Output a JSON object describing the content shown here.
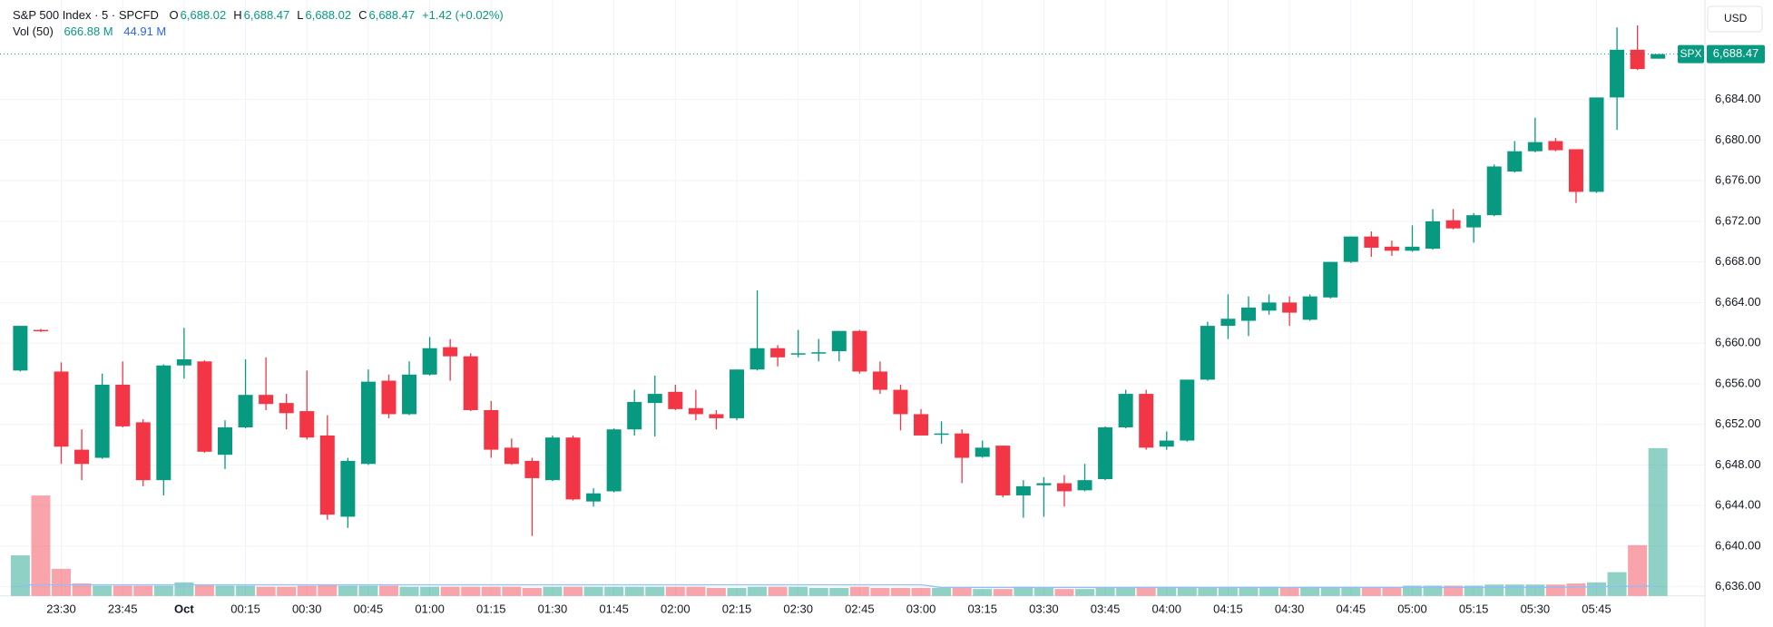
{
  "chart_data": {
    "type": "candlestick",
    "title": "S&P 500 Index · 5 · SPCFD",
    "ohlc_legend": [
      {
        "key": "O",
        "text": "6,688.02"
      },
      {
        "key": "H",
        "text": "6,688.47"
      },
      {
        "key": "L",
        "text": "6,688.02"
      },
      {
        "key": "C",
        "text": "6,688.47"
      }
    ],
    "change": "+1.42 (+0.02%)",
    "volume_legend": {
      "name": "Vol (50)",
      "values": [
        "666.88 M",
        "44.91 M"
      ]
    },
    "currency": "USD",
    "symbol": "SPX",
    "last_price": {
      "value": 6688.47,
      "label": "6,688.47"
    },
    "up_color": "#089981",
    "down_color": "#f23645",
    "volume_ma_color": "#90bff9",
    "grid": true,
    "categories": [
      null,
      null,
      "23:30",
      null,
      null,
      "23:45",
      null,
      null,
      "Oct",
      null,
      null,
      "00:15",
      null,
      null,
      "00:30",
      null,
      null,
      "00:45",
      null,
      null,
      "01:00",
      null,
      null,
      "01:15",
      null,
      null,
      "01:30",
      null,
      null,
      "01:45",
      null,
      null,
      "02:00",
      null,
      null,
      "02:15",
      null,
      null,
      "02:30",
      null,
      null,
      "02:45",
      null,
      null,
      "03:00",
      null,
      null,
      "03:15",
      null,
      null,
      "03:30",
      null,
      null,
      "03:45",
      null,
      null,
      "04:00",
      null,
      null,
      "04:15",
      null,
      null,
      "04:30",
      null,
      null,
      "04:45",
      null,
      null,
      "05:00",
      null,
      null,
      "05:15",
      null,
      null,
      "05:30",
      null,
      null,
      "05:45",
      null,
      null,
      null
    ],
    "open": [
      6657.3,
      6661.3,
      6657.2,
      6649.5,
      6648.7,
      6655.9,
      6652.2,
      6646.5,
      6657.8,
      6658.2,
      6649,
      6651.7,
      6654.9,
      6654.1,
      6653.3,
      6650.9,
      6642.9,
      6648.1,
      6656.3,
      6653,
      6656.9,
      6659.6,
      6658.7,
      6653.4,
      6649.7,
      6648.4,
      6646.5,
      6650.7,
      6644.4,
      6645.4,
      6651.5,
      6654.1,
      6655.2,
      6653.6,
      6653,
      6652.6,
      6657.4,
      6659.5,
      6658.9,
      6659,
      6659.2,
      6661.2,
      6657.2,
      6655.4,
      6653,
      6651,
      6651.1,
      6648.8,
      6649.9,
      6645,
      6646,
      6646.2,
      6645.5,
      6646.6,
      6651.7,
      6655,
      6649.8,
      6650.4,
      6656.4,
      6661.7,
      6662.2,
      6663.2,
      6664,
      6662.3,
      6664.5,
      6668,
      6670.5,
      6669.5,
      6669.1,
      6669.3,
      6672.1,
      6671.4,
      6672.6,
      6676.9,
      6678.9,
      6679.9,
      6679.1,
      6674.9,
      6684.2,
      6688.9,
      6688.02
    ],
    "high": [
      6661.7,
      6661.4,
      6658.1,
      6651.5,
      6657,
      6658.2,
      6652.5,
      6657.9,
      6661.5,
      6658.3,
      6652.4,
      6658.4,
      6658.6,
      6655,
      6657.3,
      6652.9,
      6648.7,
      6657.4,
      6656.9,
      6658.2,
      6660.6,
      6660.4,
      6659,
      6654.3,
      6650.6,
      6648.7,
      6650.9,
      6650.9,
      6645.7,
      6651.6,
      6655.4,
      6656.8,
      6655.9,
      6655.4,
      6653.4,
      6657.4,
      6665.2,
      6659.8,
      6661.3,
      6660.4,
      6661.2,
      6661.3,
      6658.2,
      6655.9,
      6653.5,
      6652.3,
      6651.5,
      6650.4,
      6649.9,
      6646.5,
      6646.8,
      6647,
      6648.1,
      6651.8,
      6655.4,
      6655.4,
      6651.3,
      6656.4,
      6662.1,
      6664.8,
      6664.6,
      6664.8,
      6664.6,
      6664.8,
      6668,
      6670.5,
      6671,
      6670.1,
      6671.6,
      6673.2,
      6673.2,
      6672.8,
      6677.6,
      6679.9,
      6682.2,
      6680.2,
      6679.1,
      6684.2,
      6691.1,
      6691.3,
      6688.47
    ],
    "low": [
      6657.2,
      6661.1,
      6648.1,
      6646.5,
      6648.6,
      6651.7,
      6645.9,
      6645,
      6656.5,
      6649.2,
      6647.6,
      6651.6,
      6653.4,
      6651.5,
      6650.5,
      6642.6,
      6641.8,
      6648,
      6652.6,
      6652.9,
      6656.8,
      6656.3,
      6653.3,
      6648.7,
      6648,
      6641,
      6646.4,
      6644.5,
      6643.9,
      6645.3,
      6650.9,
      6650.8,
      6653.4,
      6652.4,
      6651.5,
      6652.4,
      6657.3,
      6657.7,
      6658.6,
      6658.2,
      6658.2,
      6657,
      6655,
      6651.4,
      6650.9,
      6650.1,
      6646.2,
      6648.7,
      6644.8,
      6642.8,
      6642.9,
      6643.9,
      6645.4,
      6646.5,
      6651.6,
      6649.5,
      6649.5,
      6650.3,
      6656.3,
      6660.4,
      6660.7,
      6662.8,
      6661.7,
      6662.2,
      6664.4,
      6667.9,
      6668.5,
      6668.6,
      6669,
      6669.2,
      6671.2,
      6669.9,
      6672.5,
      6676.8,
      6678.8,
      6678.9,
      6673.8,
      6674.8,
      6681,
      6686.9,
      6688.02
    ],
    "close": [
      6661.7,
      6661.2,
      6649.8,
      6648.1,
      6655.9,
      6651.8,
      6646.5,
      6657.8,
      6658.4,
      6649.3,
      6651.7,
      6654.9,
      6654,
      6653.1,
      6650.7,
      6643.1,
      6648.4,
      6656.2,
      6653,
      6656.9,
      6659.5,
      6658.7,
      6653.4,
      6649.5,
      6648.1,
      6646.7,
      6650.7,
      6644.6,
      6645.2,
      6651.5,
      6654.2,
      6655,
      6653.5,
      6653,
      6652.6,
      6657.4,
      6659.5,
      6658.6,
      6659,
      6659.1,
      6661.2,
      6657.2,
      6655.4,
      6653,
      6650.9,
      6651.1,
      6648.7,
      6649.7,
      6645,
      6645.9,
      6646.2,
      6645.4,
      6646.5,
      6651.7,
      6655,
      6649.7,
      6650.4,
      6656.4,
      6661.7,
      6662.4,
      6663.5,
      6664,
      6663,
      6664.6,
      6668,
      6670.5,
      6669.4,
      6669.1,
      6669.5,
      6672,
      6671.3,
      6672.6,
      6677.4,
      6678.9,
      6679.8,
      6679,
      6674.9,
      6684.2,
      6688.9,
      6687,
      6688.47
    ],
    "volume": [
      183,
      453,
      122,
      56,
      46,
      46,
      46,
      46,
      61,
      51,
      46,
      46,
      41,
      41,
      46,
      51,
      46,
      46,
      46,
      41,
      41,
      41,
      41,
      41,
      41,
      36,
      41,
      41,
      41,
      41,
      41,
      41,
      41,
      41,
      36,
      36,
      41,
      41,
      41,
      36,
      36,
      41,
      36,
      36,
      36,
      36,
      36,
      31,
      31,
      41,
      36,
      31,
      31,
      36,
      36,
      41,
      41,
      41,
      36,
      41,
      41,
      41,
      36,
      41,
      41,
      41,
      41,
      41,
      46,
      46,
      46,
      46,
      51,
      51,
      51,
      51,
      56,
      61,
      107,
      229,
      666.88
    ],
    "volume_ma": [
      50,
      50,
      50,
      50,
      50,
      50,
      50,
      50,
      50,
      50,
      50,
      50,
      50,
      50,
      50,
      50,
      50,
      50,
      50,
      50,
      50,
      50,
      50,
      50,
      50,
      50,
      50,
      50,
      50,
      50,
      50,
      50,
      50,
      50,
      50,
      50,
      50,
      50,
      50,
      50,
      50,
      50,
      50,
      50,
      50,
      38,
      38,
      38,
      38,
      38,
      38,
      38,
      38,
      38,
      38,
      38,
      38,
      38,
      38,
      38,
      38,
      38,
      38,
      38,
      38,
      38,
      38,
      38,
      38,
      38,
      38,
      38,
      38,
      38,
      38,
      39,
      40,
      41,
      43,
      44,
      44.91
    ],
    "ylim": [
      6635.1,
      6693.8
    ],
    "yticks": [
      {
        "value": 6636,
        "label": "6,636.00"
      },
      {
        "value": 6640,
        "label": "6,640.00"
      },
      {
        "value": 6644,
        "label": "6,644.00"
      },
      {
        "value": 6648,
        "label": "6,648.00"
      },
      {
        "value": 6652,
        "label": "6,652.00"
      },
      {
        "value": 6656,
        "label": "6,656.00"
      },
      {
        "value": 6660,
        "label": "6,660.00"
      },
      {
        "value": 6664,
        "label": "6,664.00"
      },
      {
        "value": 6668,
        "label": "6,668.00"
      },
      {
        "value": 6672,
        "label": "6,672.00"
      },
      {
        "value": 6676,
        "label": "6,676.00"
      },
      {
        "value": 6680,
        "label": "6,680.00"
      },
      {
        "value": 6684,
        "label": "6,684.00"
      }
    ],
    "y2lim": [
      0,
      2690
    ]
  }
}
